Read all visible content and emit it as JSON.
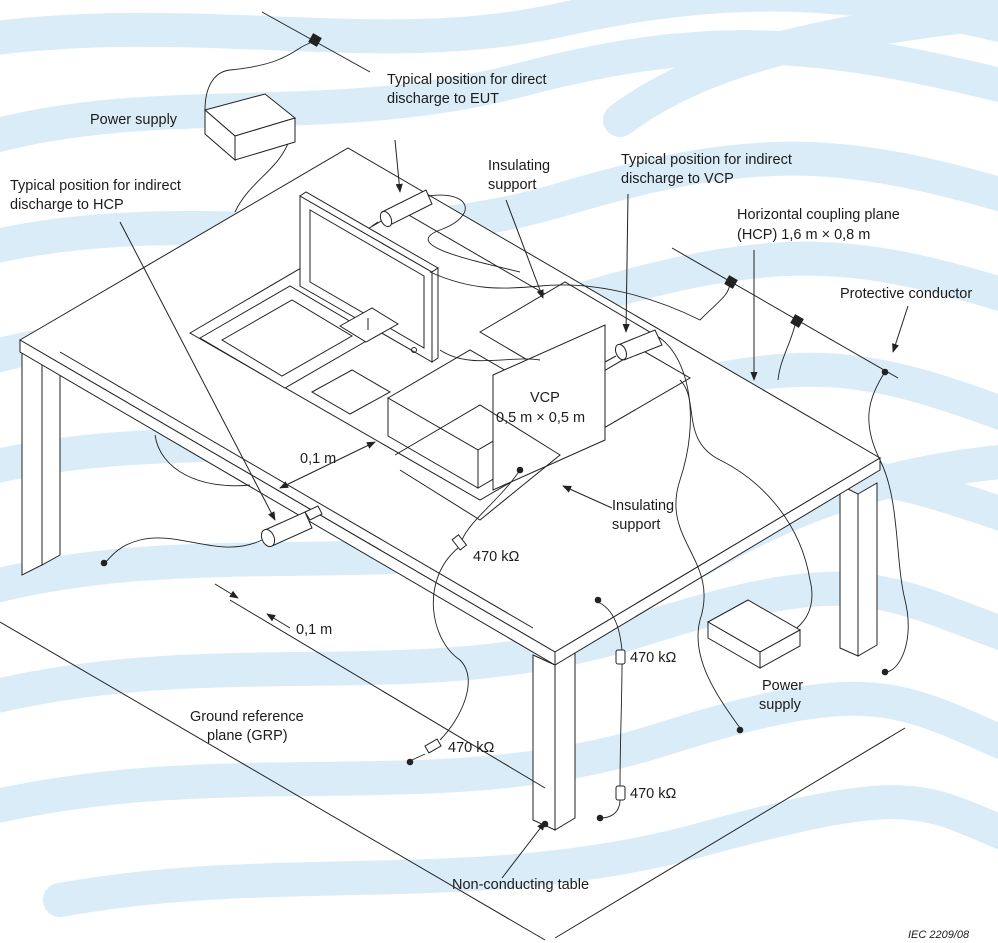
{
  "colors": {
    "background": "#ffffff",
    "watermark_wave": "#daecf8",
    "line": "#222222",
    "text": "#1c1c1c"
  },
  "labels": {
    "power_supply_top": "Power supply",
    "direct_discharge_1": "Typical position for direct",
    "direct_discharge_2": "discharge to EUT",
    "indirect_hcp_1": "Typical position for indirect",
    "indirect_hcp_2": "discharge to HCP",
    "insulating_support_top_1": "Insulating",
    "insulating_support_top_2": "support",
    "indirect_vcp_1": "Typical position for indirect",
    "indirect_vcp_2": "discharge to VCP",
    "hcp_1": "Horizontal coupling plane",
    "hcp_2": "(HCP) 1,6 m × 0,8 m",
    "protective_conductor": "Protective conductor",
    "vcp_1": "VCP",
    "vcp_2": "0,5 m × 0,5 m",
    "dist_upper": "0,1 m",
    "dist_lower": "0,1 m",
    "insulating_support_mid_1": "Insulating",
    "insulating_support_mid_2": "support",
    "resistor_vcp": "470 kΩ",
    "resistor_hcp_1": "470 kΩ",
    "resistor_hcp_2": "470 kΩ",
    "resistor_hcp_3": "470 kΩ",
    "power_supply_bottom_1": "Power",
    "power_supply_bottom_2": "supply",
    "grp_1": "Ground reference",
    "grp_2": "plane (GRP)",
    "table": "Non-conducting table",
    "figure_id": "IEC   2209/08"
  }
}
